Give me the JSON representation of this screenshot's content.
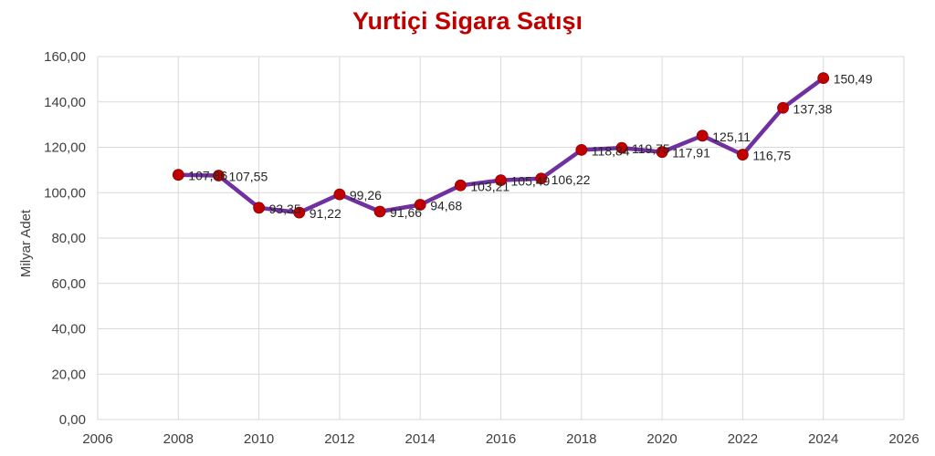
{
  "chart_data": {
    "type": "line",
    "title": "Yurtiçi Sigara Satışı",
    "xlabel": "",
    "ylabel": "Milyar Adet",
    "xlim": [
      2006,
      2026
    ],
    "ylim": [
      0,
      160
    ],
    "x_ticks": [
      "2006",
      "2008",
      "2010",
      "2012",
      "2014",
      "2016",
      "2018",
      "2020",
      "2022",
      "2024",
      "2026"
    ],
    "y_ticks": [
      "0,00",
      "20,00",
      "40,00",
      "60,00",
      "80,00",
      "100,00",
      "120,00",
      "140,00",
      "160,00"
    ],
    "grid": true,
    "legend": "none",
    "colors": {
      "line": "#7030a0",
      "marker": "#c00000",
      "title": "#c00000"
    },
    "series": [
      {
        "x": [
          2008,
          2009,
          2010,
          2011,
          2012,
          2013,
          2014,
          2015,
          2016,
          2017,
          2018,
          2019,
          2020,
          2021,
          2022,
          2023,
          2024
        ],
        "values": [
          107.86,
          107.55,
          93.35,
          91.22,
          99.26,
          91.66,
          94.68,
          103.21,
          105.49,
          106.22,
          118.84,
          119.75,
          117.91,
          125.11,
          116.75,
          137.38,
          150.49
        ],
        "labels": [
          "107,86",
          "107,55",
          "93,35",
          "91,22",
          "99,26",
          "91,66",
          "94,68",
          "103,21",
          "105,49",
          "106,22",
          "118,84",
          "119,75",
          "117,91",
          "125,11",
          "116,75",
          "137,38",
          "150,49"
        ]
      }
    ]
  }
}
